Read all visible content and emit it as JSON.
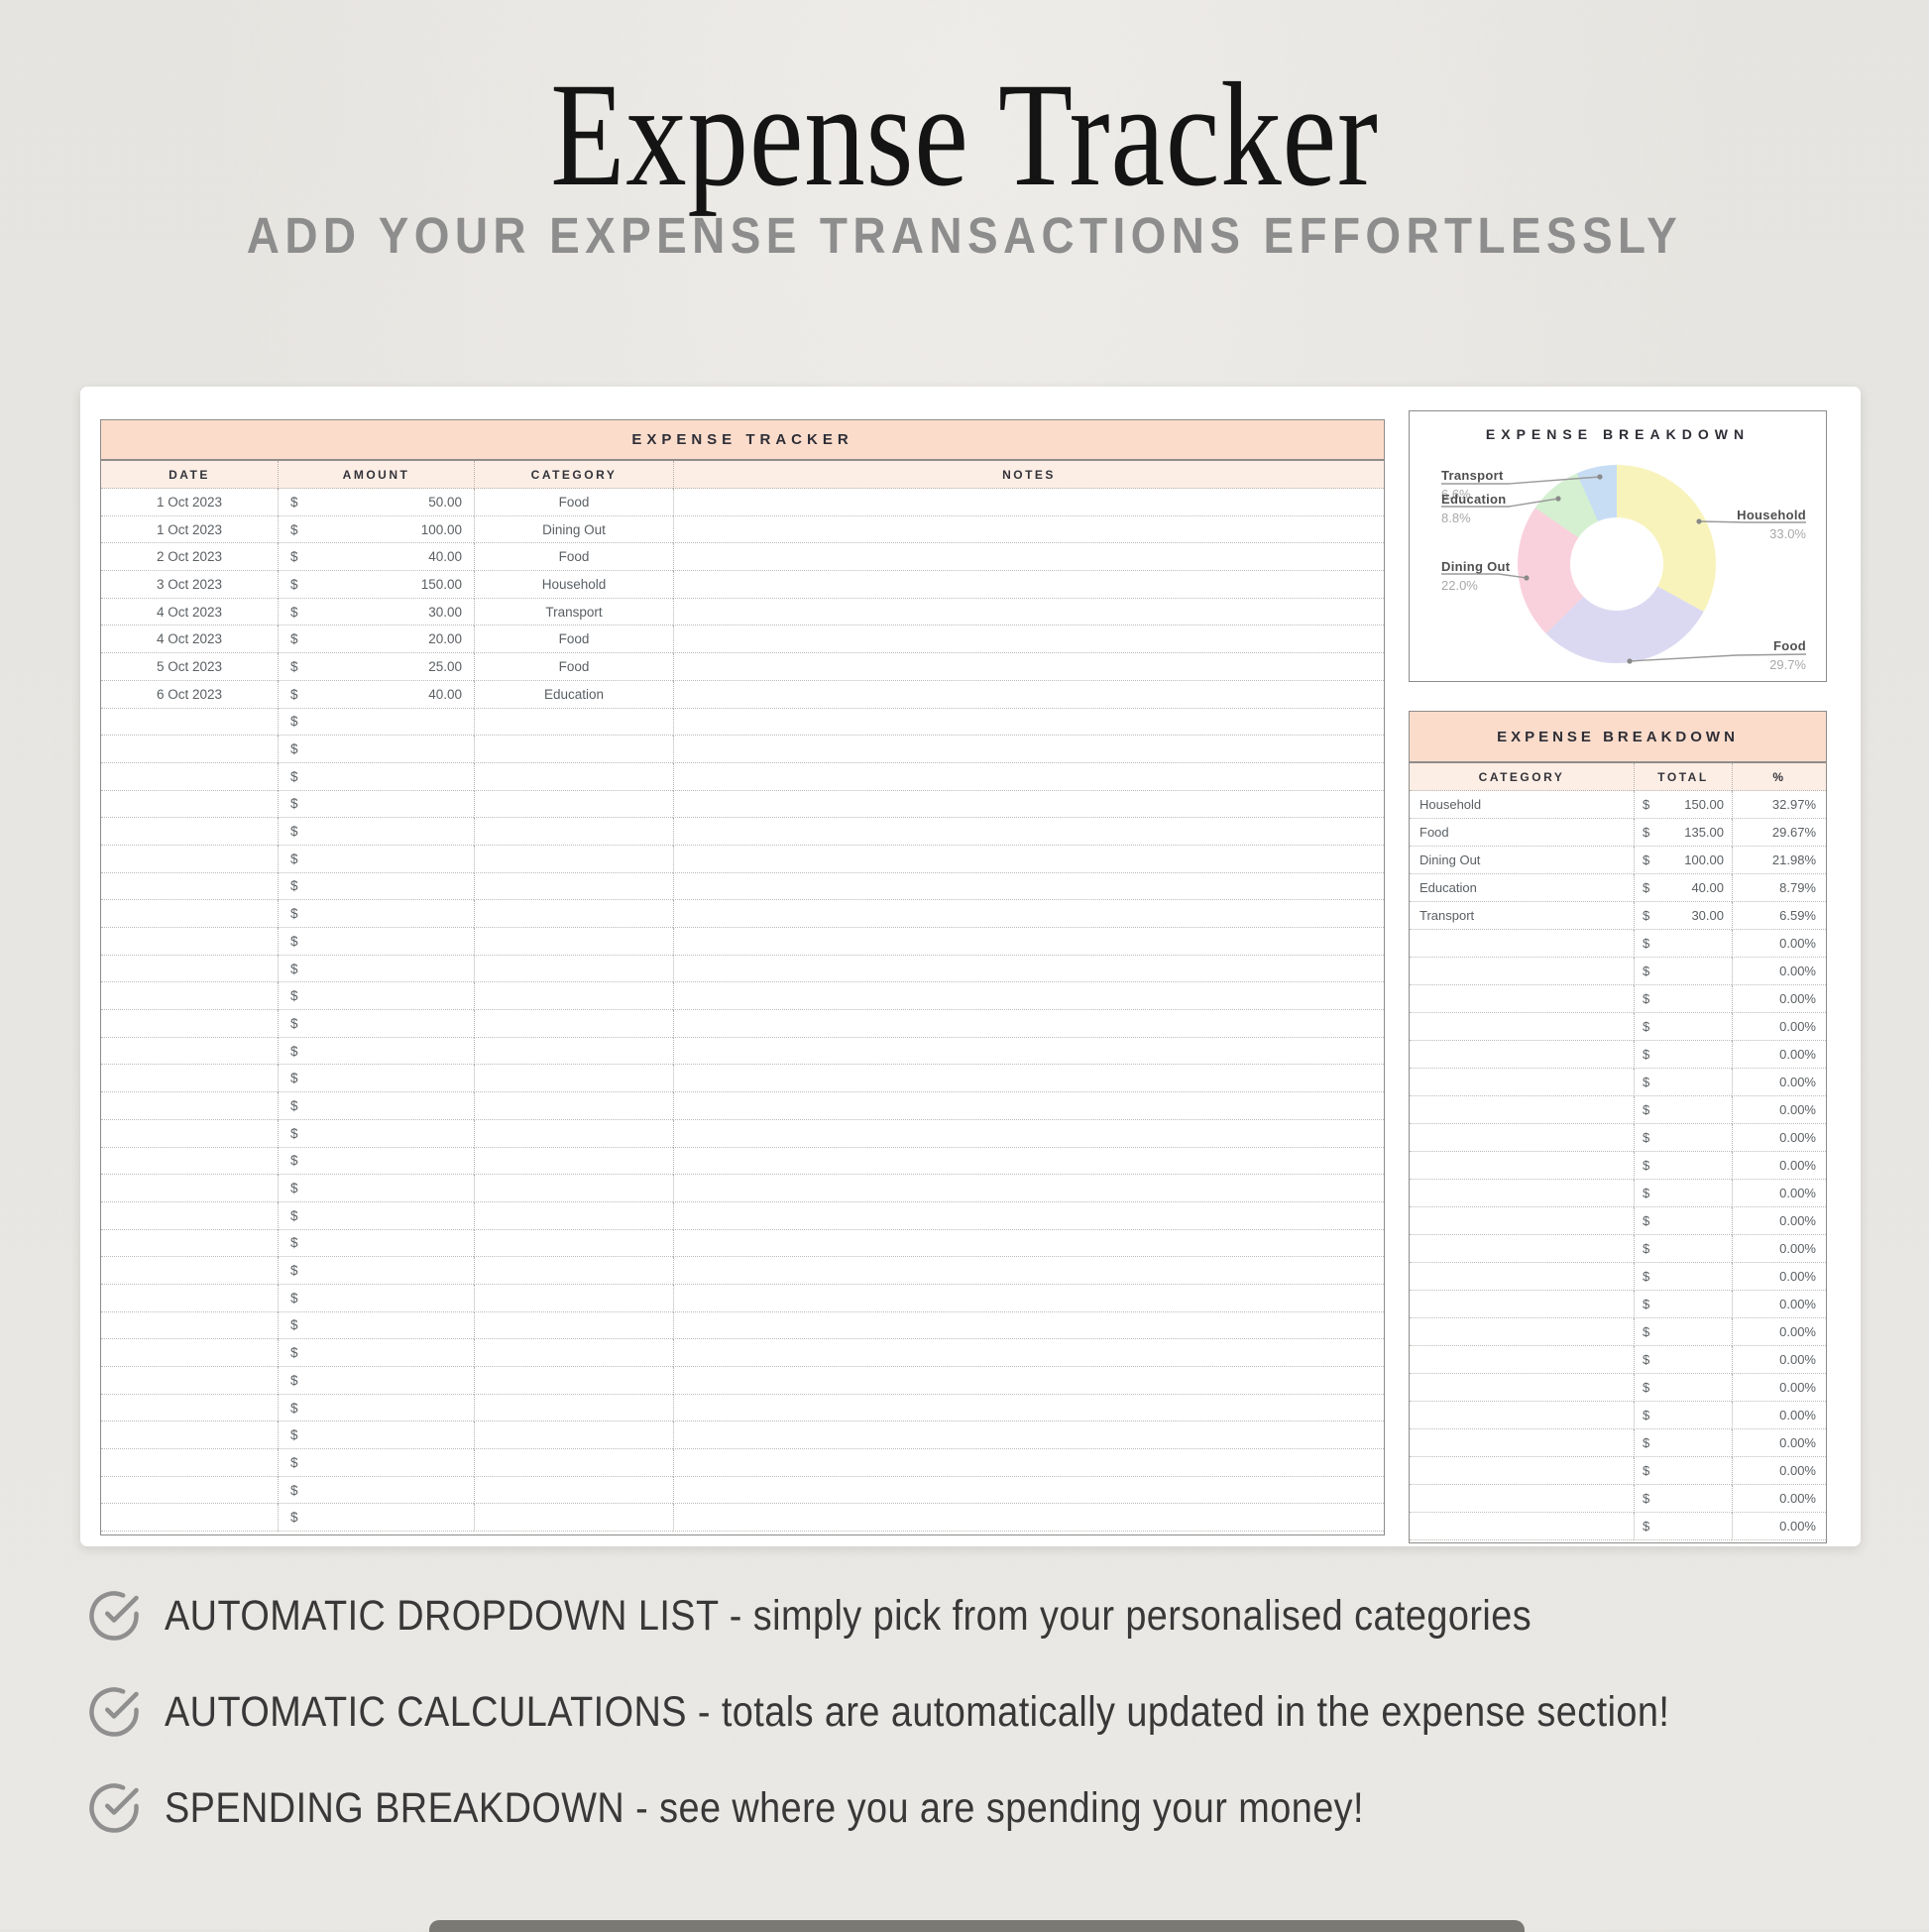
{
  "page": {
    "title": "Expense Tracker",
    "subtitle": "ADD YOUR EXPENSE TRANSACTIONS EFFORTLESSLY"
  },
  "tracker_table": {
    "title": "EXPENSE TRACKER",
    "columns": [
      "DATE",
      "AMOUNT",
      "CATEGORY",
      "NOTES"
    ],
    "currency_symbol": "$",
    "rows": [
      {
        "date": "1 Oct 2023",
        "amount": "50.00",
        "category": "Food",
        "notes": ""
      },
      {
        "date": "1 Oct 2023",
        "amount": "100.00",
        "category": "Dining Out",
        "notes": ""
      },
      {
        "date": "2 Oct 2023",
        "amount": "40.00",
        "category": "Food",
        "notes": ""
      },
      {
        "date": "3 Oct 2023",
        "amount": "150.00",
        "category": "Household",
        "notes": ""
      },
      {
        "date": "4 Oct 2023",
        "amount": "30.00",
        "category": "Transport",
        "notes": ""
      },
      {
        "date": "4 Oct 2023",
        "amount": "20.00",
        "category": "Food",
        "notes": ""
      },
      {
        "date": "5 Oct 2023",
        "amount": "25.00",
        "category": "Food",
        "notes": ""
      },
      {
        "date": "6 Oct 2023",
        "amount": "40.00",
        "category": "Education",
        "notes": ""
      }
    ],
    "empty_row_count": 30
  },
  "chart_data": {
    "type": "pie",
    "donut": true,
    "title": "EXPENSE BREAKDOWN",
    "categories": [
      "Household",
      "Food",
      "Dining Out",
      "Education",
      "Transport"
    ],
    "values": [
      33.0,
      29.7,
      22.0,
      8.8,
      6.6
    ],
    "unit": "%",
    "colors": [
      "#f8f3bb",
      "#dbd9f2",
      "#f9d1dc",
      "#d4f0d1",
      "#c7ddf4"
    ],
    "legend_position": "callout-labels",
    "slice_labels": [
      {
        "name": "Household",
        "pct": "33.0%"
      },
      {
        "name": "Food",
        "pct": "29.7%"
      },
      {
        "name": "Dining Out",
        "pct": "22.0%"
      },
      {
        "name": "Education",
        "pct": "8.8%"
      },
      {
        "name": "Transport",
        "pct": "6.6%"
      }
    ]
  },
  "breakdown_table": {
    "title": "EXPENSE BREAKDOWN",
    "columns": [
      "CATEGORY",
      "TOTAL",
      "%"
    ],
    "currency_symbol": "$",
    "rows": [
      {
        "category": "Household",
        "total": "150.00",
        "pct": "32.97%"
      },
      {
        "category": "Food",
        "total": "135.00",
        "pct": "29.67%"
      },
      {
        "category": "Dining Out",
        "total": "100.00",
        "pct": "21.98%"
      },
      {
        "category": "Education",
        "total": "40.00",
        "pct": "8.79%"
      },
      {
        "category": "Transport",
        "total": "30.00",
        "pct": "6.59%"
      }
    ],
    "empty_row_count": 22,
    "empty_pct": "0.00%"
  },
  "features": [
    {
      "icon": "check-circle-icon",
      "heading": "AUTOMATIC DROPDOWN LIST",
      "description": " - simply pick from your personalised categories"
    },
    {
      "icon": "check-circle-icon",
      "heading": "AUTOMATIC CALCULATIONS",
      "description": " - totals are automatically updated in the expense section!"
    },
    {
      "icon": "check-circle-icon",
      "heading": "SPENDING BREAKDOWN",
      "description": " - see where you are spending your money!"
    }
  ],
  "colors": {
    "accent_banner": "#fbdccb",
    "accent_header_row": "#fdeee5",
    "table_border": "#8e8c8a",
    "background": "#e8e6e2"
  }
}
